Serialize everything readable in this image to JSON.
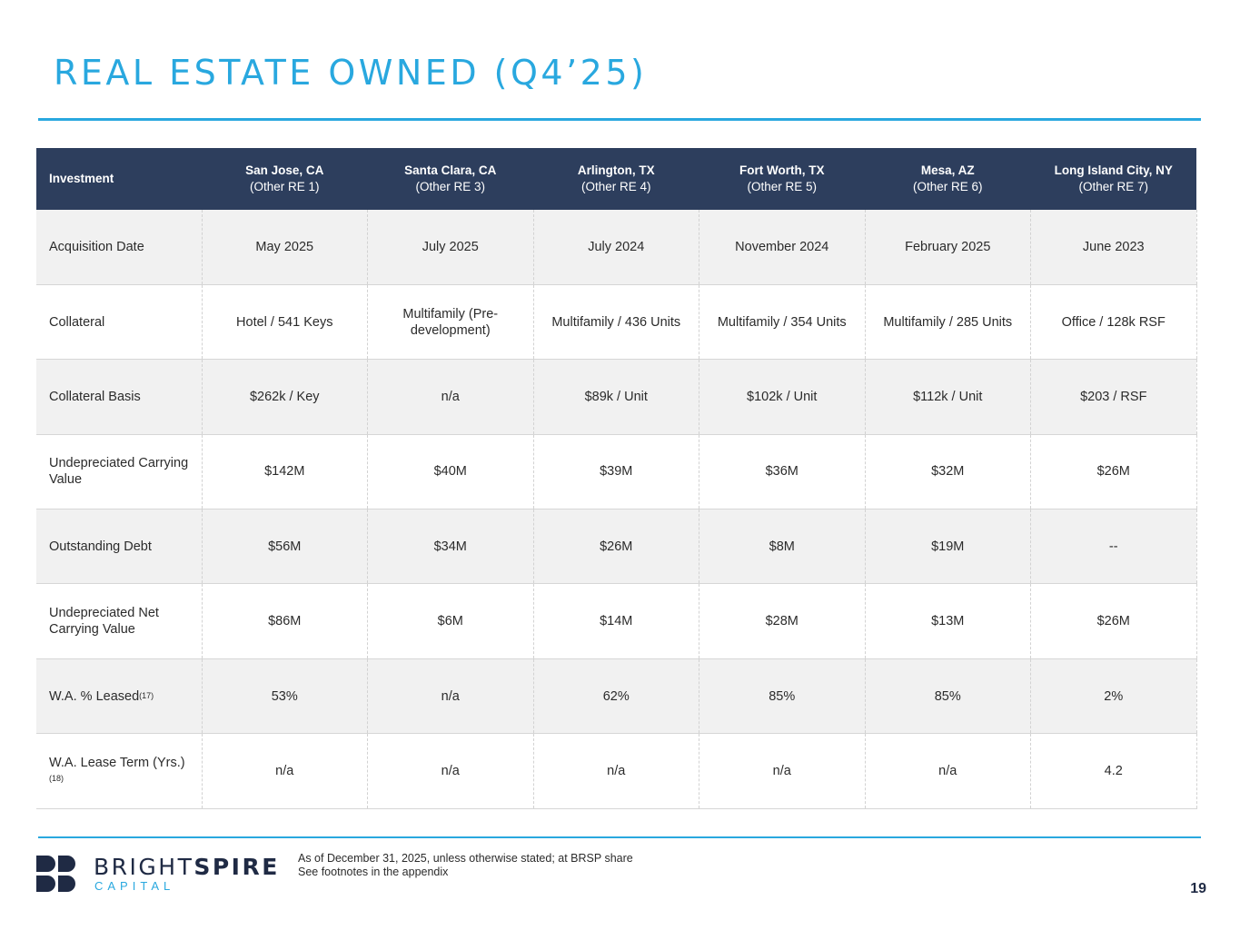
{
  "title": "REAL ESTATE OWNED (Q4’25)",
  "table": {
    "corner_label": "Investment",
    "columns": [
      {
        "location": "San Jose, CA",
        "sub": "(Other RE 1)"
      },
      {
        "location": "Santa Clara, CA",
        "sub": "(Other RE 3)"
      },
      {
        "location": "Arlington, TX",
        "sub": "(Other RE 4)"
      },
      {
        "location": "Fort Worth, TX",
        "sub": "(Other RE 5)"
      },
      {
        "location": "Mesa, AZ",
        "sub": "(Other RE 6)"
      },
      {
        "location": "Long Island City, NY",
        "sub": "(Other RE 7)"
      }
    ],
    "rows": [
      {
        "label": "Acquisition Date",
        "footnote": "",
        "values": [
          "May 2025",
          "July 2025",
          "July 2024",
          "November 2024",
          "February 2025",
          "June 2023"
        ]
      },
      {
        "label": "Collateral",
        "footnote": "",
        "values": [
          "Hotel / 541 Keys",
          "Multifamily (Pre-development)",
          "Multifamily / 436 Units",
          "Multifamily / 354 Units",
          "Multifamily / 285 Units",
          "Office / 128k RSF"
        ]
      },
      {
        "label": "Collateral Basis",
        "footnote": "",
        "values": [
          "$262k / Key",
          "n/a",
          "$89k / Unit",
          "$102k / Unit",
          "$112k / Unit",
          "$203 / RSF"
        ]
      },
      {
        "label": "Undepreciated Carrying Value",
        "footnote": "",
        "values": [
          "$142M",
          "$40M",
          "$39M",
          "$36M",
          "$32M",
          "$26M"
        ]
      },
      {
        "label": "Outstanding Debt",
        "footnote": "",
        "values": [
          "$56M",
          "$34M",
          "$26M",
          "$8M",
          "$19M",
          "--"
        ]
      },
      {
        "label": "Undepreciated Net Carrying Value",
        "footnote": "",
        "values": [
          "$86M",
          "$6M",
          "$14M",
          "$28M",
          "$13M",
          "$26M"
        ]
      },
      {
        "label": "W.A. % Leased",
        "footnote": "(17)",
        "values": [
          "53%",
          "n/a",
          "62%",
          "85%",
          "85%",
          "2%"
        ]
      },
      {
        "label": "W.A. Lease Term (Yrs.)",
        "footnote": "(18)",
        "values": [
          "n/a",
          "n/a",
          "n/a",
          "n/a",
          "n/a",
          "4.2"
        ]
      }
    ]
  },
  "logo": {
    "word_light": "BRIGHT",
    "word_bold": "SPIRE",
    "sub": "CAPITAL"
  },
  "footnotes": [
    "As of December 31, 2025, unless otherwise stated; at BRSP share",
    "See footnotes in the appendix"
  ],
  "page_number": "19",
  "colors": {
    "accent": "#29a8df",
    "header_bg": "#2d3e5d",
    "navy": "#1f2a44",
    "row_alt": "#f1f1f1"
  }
}
